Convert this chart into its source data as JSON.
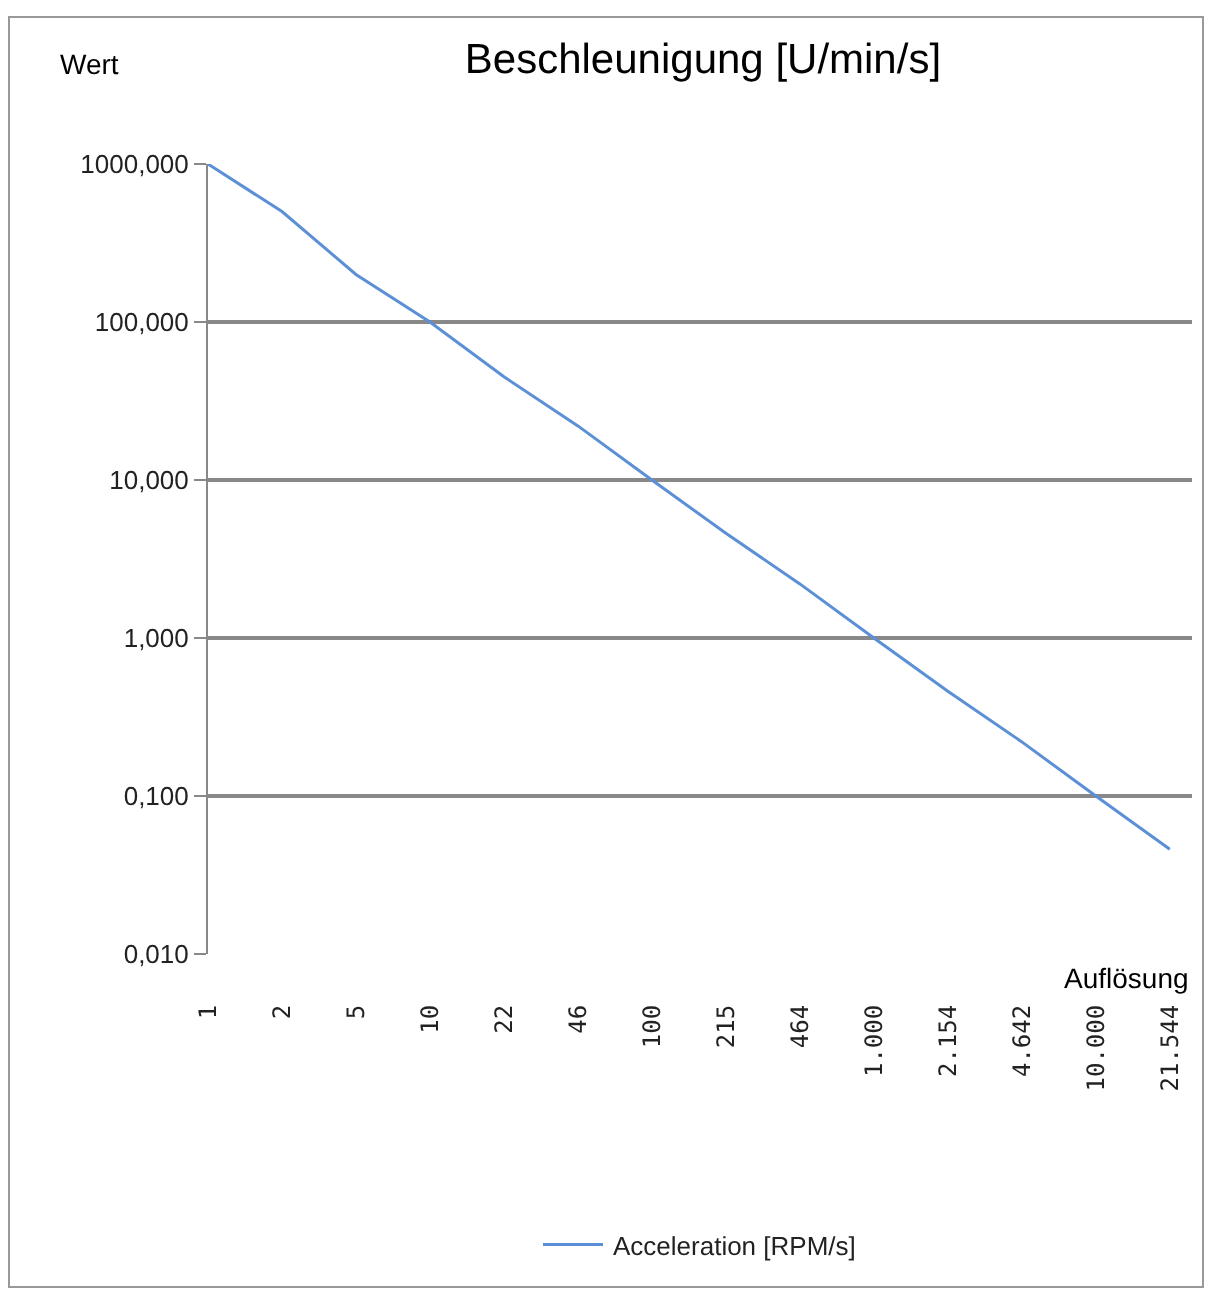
{
  "chart_data": {
    "type": "line",
    "title": "Beschleunigung [U/min/s]",
    "xlabel": "Auflösung",
    "ylabel": "Wert",
    "categories": [
      "1",
      "2",
      "5",
      "10",
      "22",
      "46",
      "100",
      "215",
      "464",
      "1.000",
      "2.154",
      "4.642",
      "10.000",
      "21.544"
    ],
    "series": [
      {
        "name": "Acceleration [RPM/s]",
        "color": "#5b8fd6",
        "values": [
          1000,
          500,
          200,
          100,
          45,
          22,
          10,
          4.6,
          2.2,
          1,
          0.46,
          0.22,
          0.1,
          0.046
        ]
      }
    ],
    "log": "y",
    "ylim": [
      0.01,
      1000
    ],
    "yticks": [
      {
        "value": 0.01,
        "label": "0,010"
      },
      {
        "value": 0.1,
        "label": "0,100"
      },
      {
        "value": 1,
        "label": "1,000"
      },
      {
        "value": 10,
        "label": "10,000"
      },
      {
        "value": 100,
        "label": "100,000"
      },
      {
        "value": 1000,
        "label": "1000,000"
      }
    ],
    "grid": "y",
    "legend": "bottom",
    "marker": "none",
    "line_style": "solid"
  }
}
